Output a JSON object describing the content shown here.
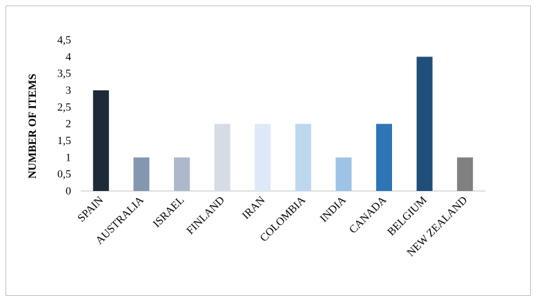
{
  "chart_data": {
    "type": "bar",
    "title": "",
    "xlabel": "",
    "ylabel": "NUMBER OF ITEMS",
    "ylim": [
      0,
      4.5
    ],
    "yticks": [
      "0",
      "0,5",
      "1",
      "1,5",
      "2",
      "2,5",
      "3",
      "3,5",
      "4",
      "4,5"
    ],
    "grid": false,
    "legend": "none",
    "categories": [
      "SPAIN",
      "AUSTRALIA",
      "ISRAEL",
      "FINLAND",
      "IRAN",
      "COLOMBIA",
      "INDIA",
      "CANADA",
      "BELGIUM",
      "NEW ZEALAND"
    ],
    "values": [
      3,
      1,
      1,
      2,
      2,
      2,
      1,
      2,
      4,
      1
    ],
    "colors": [
      "#1f2a38",
      "#8497b0",
      "#adb9ca",
      "#d6dce5",
      "#dde9f6",
      "#bdd7ee",
      "#9dc3e6",
      "#2e75b6",
      "#1f4e79",
      "#808080"
    ]
  }
}
